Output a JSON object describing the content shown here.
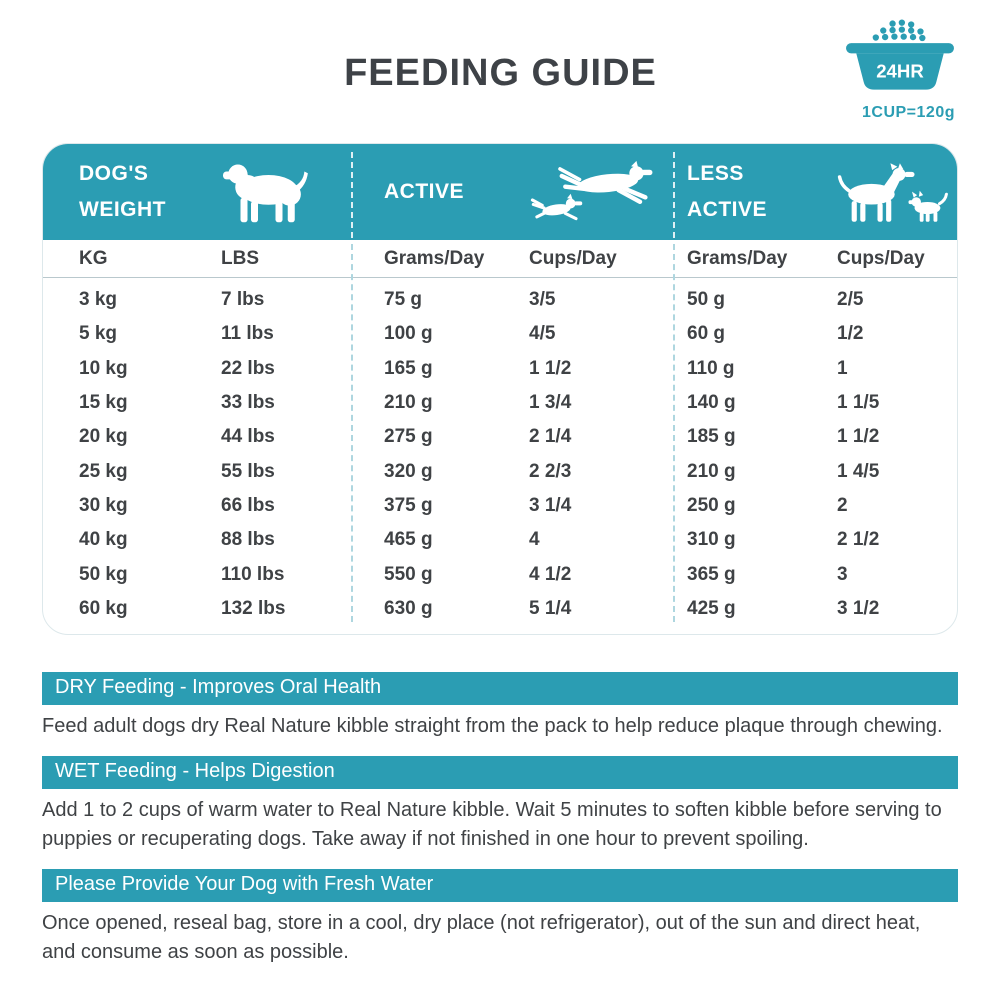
{
  "header": {
    "title": "FEEDING GUIDE",
    "bowl_label": "24HR",
    "cup_note": "1CUP=120g"
  },
  "chart_data": {
    "type": "table",
    "title": "FEEDING GUIDE",
    "column_groups": [
      {
        "label_lines": [
          "DOG'S",
          "WEIGHT"
        ],
        "icon": "st-bernard-dog-icon"
      },
      {
        "label_lines": [
          "ACTIVE"
        ],
        "icon": "running-dogs-icon"
      },
      {
        "label_lines": [
          "LESS",
          "ACTIVE"
        ],
        "icon": "standing-dogs-icon"
      }
    ],
    "columns": [
      "KG",
      "LBS",
      "Grams/Day",
      "Cups/Day",
      "Grams/Day",
      "Cups/Day"
    ],
    "rows": [
      [
        "3 kg",
        "7 lbs",
        "75 g",
        "3/5",
        "50 g",
        "2/5"
      ],
      [
        "5 kg",
        "11 lbs",
        "100 g",
        "4/5",
        "60 g",
        "1/2"
      ],
      [
        "10 kg",
        "22 lbs",
        "165 g",
        "1 1/2",
        "110 g",
        "1"
      ],
      [
        "15 kg",
        "33 lbs",
        "210 g",
        "1 3/4",
        "140 g",
        "1 1/5"
      ],
      [
        "20 kg",
        "44 lbs",
        "275 g",
        "2 1/4",
        "185 g",
        "1 1/2"
      ],
      [
        "25 kg",
        "55 lbs",
        "320 g",
        "2 2/3",
        "210 g",
        "1 4/5"
      ],
      [
        "30 kg",
        "66 lbs",
        "375 g",
        "3 1/4",
        "250 g",
        "2"
      ],
      [
        "40 kg",
        "88 lbs",
        "465 g",
        "4",
        "310 g",
        "2 1/2"
      ],
      [
        "50 kg",
        "110 lbs",
        "550 g",
        "4 1/2",
        "365 g",
        "3"
      ],
      [
        "60 kg",
        "132 lbs",
        "630 g",
        "5 1/4",
        "425 g",
        "3 1/2"
      ]
    ],
    "note": "1CUP=120g"
  },
  "sections": [
    {
      "heading": "DRY Feeding - Improves Oral Health",
      "body": "Feed adult dogs dry Real Nature kibble straight from the pack to help reduce plaque through chewing."
    },
    {
      "heading": "WET Feeding - Helps Digestion",
      "body": "Add 1 to 2 cups of warm water to Real Nature kibble. Wait 5 minutes to soften kibble before serving to puppies or recuperating dogs. Take away if not finished in one hour to prevent spoiling."
    },
    {
      "heading": "Please Provide Your Dog with Fresh Water",
      "body": "Once opened, reseal bag, store in a cool, dry place (not refrigerator), out of the sun and direct heat, and consume as soon as possible."
    }
  ],
  "colors": {
    "teal": "#2B9DB3",
    "text_dark": "#3F4245"
  }
}
